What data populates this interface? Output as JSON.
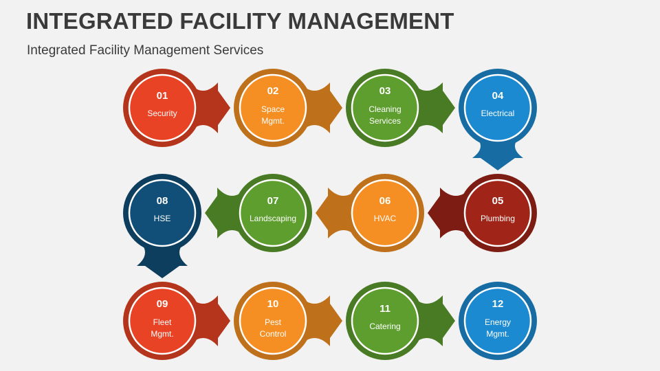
{
  "header": {
    "title": "INTEGRATED FACILITY MANAGEMENT",
    "subtitle": "Integrated Facility Management Services"
  },
  "colors": {
    "red": "#e84324",
    "orange": "#f58f23",
    "green": "#5e9e2e",
    "blue": "#1c8ad1",
    "darkred": "#a02417",
    "navy": "#114f79"
  },
  "nodes": [
    {
      "number": "01",
      "label": [
        "Security"
      ],
      "color": "red"
    },
    {
      "number": "02",
      "label": [
        "Space",
        "Mgmt."
      ],
      "color": "orange"
    },
    {
      "number": "03",
      "label": [
        "Cleaning",
        "Services"
      ],
      "color": "green"
    },
    {
      "number": "04",
      "label": [
        "Electrical"
      ],
      "color": "blue"
    },
    {
      "number": "05",
      "label": [
        "Plumbing"
      ],
      "color": "darkred"
    },
    {
      "number": "06",
      "label": [
        "HVAC"
      ],
      "color": "orange"
    },
    {
      "number": "07",
      "label": [
        "Landscaping"
      ],
      "color": "green"
    },
    {
      "number": "08",
      "label": [
        "HSE"
      ],
      "color": "navy"
    },
    {
      "number": "09",
      "label": [
        "Fleet",
        "Mgmt."
      ],
      "color": "red"
    },
    {
      "number": "10",
      "label": [
        "Pest",
        "Control"
      ],
      "color": "orange"
    },
    {
      "number": "11",
      "label": [
        "Catering"
      ],
      "color": "green"
    },
    {
      "number": "12",
      "label": [
        "Energy",
        "Mgmt."
      ],
      "color": "blue"
    }
  ]
}
